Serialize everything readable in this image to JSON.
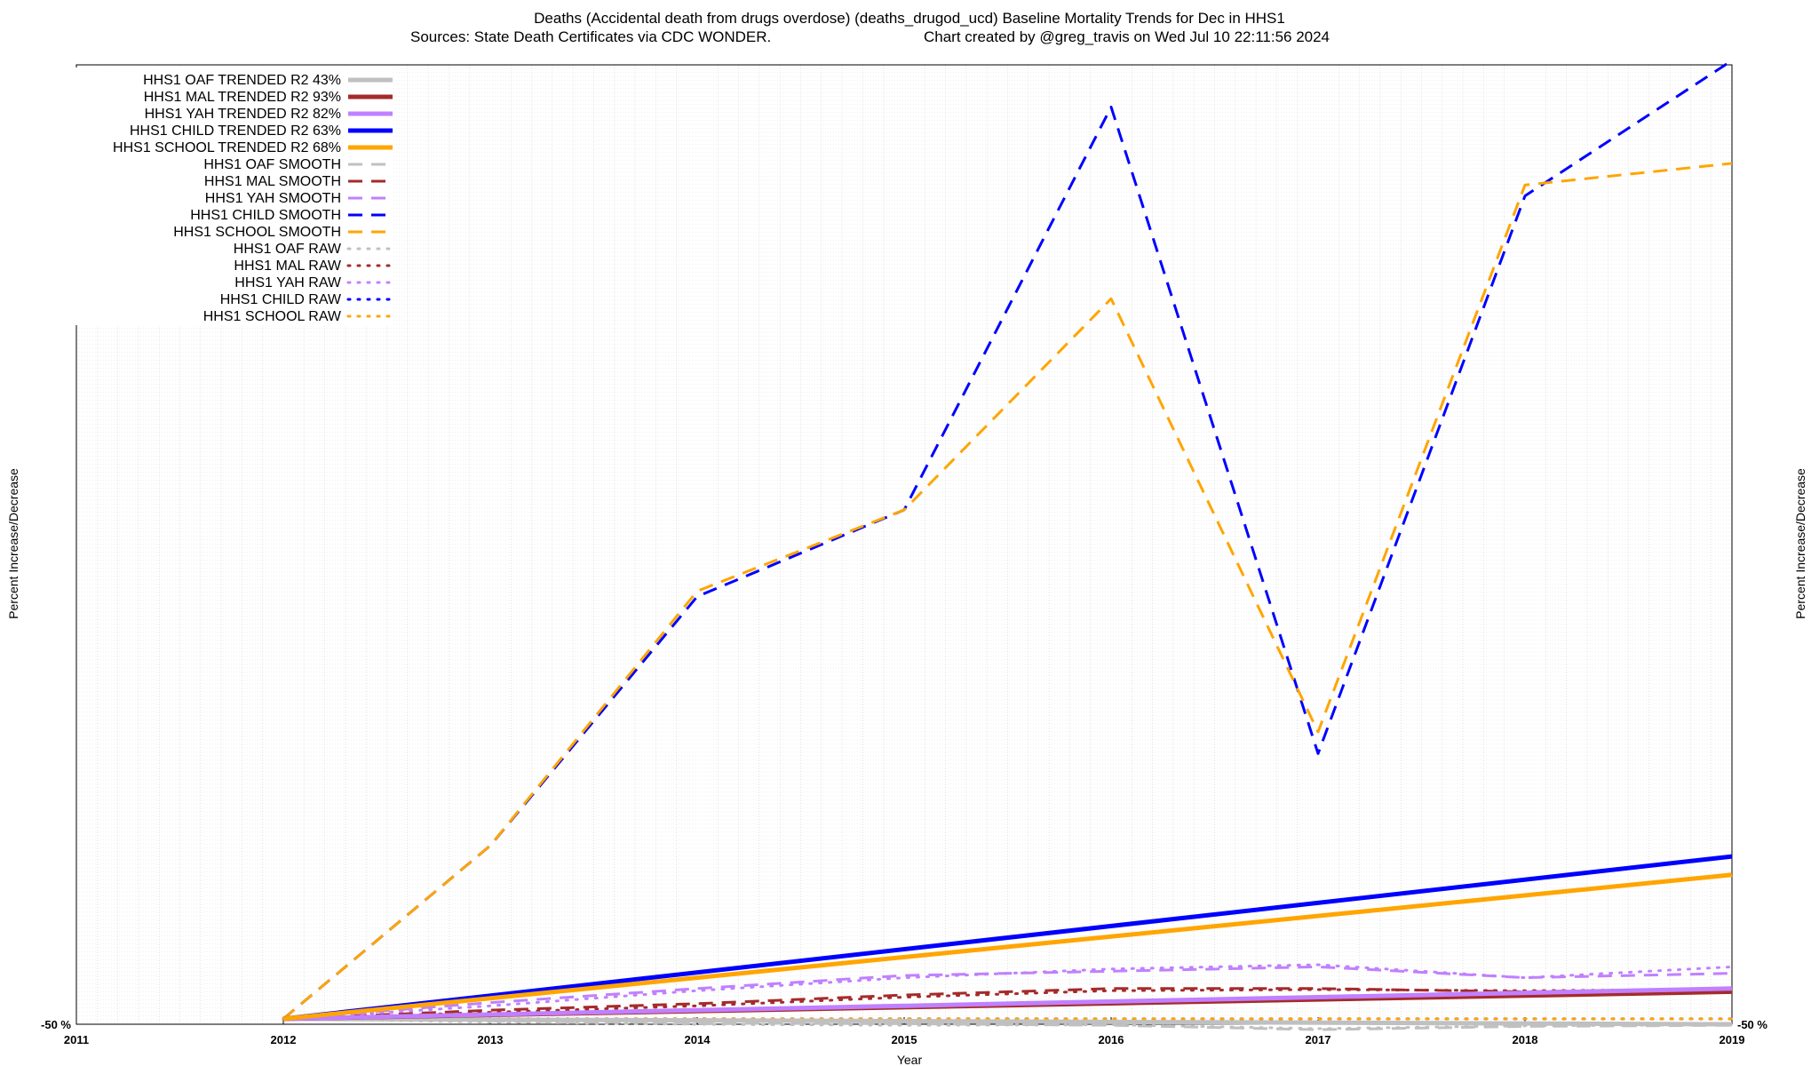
{
  "title_line1": "Deaths (Accidental death from drugs overdose) (deaths_drugod_ucd)  Baseline Mortality Trends for Dec in HHS1",
  "title_line2_left": "Sources: State Death Certificates via CDC WONDER.",
  "title_line2_right": "Chart created by @greg_travis on Wed Jul 10 22:11:56 2024",
  "chart_data": {
    "type": "line",
    "title": "Deaths (Accidental death from drugs overdose) (deaths_drugod_ucd)  Baseline Mortality Trends for Dec in HHS1",
    "subtitle": "Sources: State Death Certificates via CDC WONDER.    Chart created by @greg_travis on Wed Jul 10 22:11:56 2024",
    "xlabel": "Year",
    "ylabel": "Percent Increase/Decrease",
    "y2label": "Percent Increase/Decrease",
    "x_ticks": [
      "2011",
      "2012",
      "2013",
      "2014",
      "2015",
      "2016",
      "2017",
      "2018",
      "2019"
    ],
    "xlim": [
      2011,
      2019
    ],
    "ylim": [
      -50,
      8810
    ],
    "y_tick_labels_legible": [
      "-50 %"
    ],
    "grid": true,
    "legend_position": "top-left",
    "series": [
      {
        "name": "HHS1 OAF TRENDED R2  43%",
        "color": "#c0c0c0",
        "style": "solid",
        "width": 5,
        "x": [
          2012,
          2019
        ],
        "y": [
          0,
          -50
        ]
      },
      {
        "name": "HHS1 MAL TRENDED R2  93%",
        "color": "#a52a2a",
        "style": "solid",
        "width": 5,
        "x": [
          2012,
          2019
        ],
        "y": [
          0,
          250
        ]
      },
      {
        "name": "HHS1 YAH TRENDED R2  82%",
        "color": "#c080ff",
        "style": "solid",
        "width": 5,
        "x": [
          2012,
          2019
        ],
        "y": [
          0,
          280
        ]
      },
      {
        "name": "HHS1 CHILD TRENDED R2  63%",
        "color": "#0000ff",
        "style": "solid",
        "width": 5,
        "x": [
          2012,
          2019
        ],
        "y": [
          0,
          1500
        ]
      },
      {
        "name": "HHS1 SCHOOL TRENDED R2  68%",
        "color": "#ffa500",
        "style": "solid",
        "width": 5,
        "x": [
          2012,
          2019
        ],
        "y": [
          0,
          1330
        ]
      },
      {
        "name": "HHS1 OAF SMOOTH",
        "color": "#c0c0c0",
        "style": "dash",
        "width": 3,
        "x": [
          2012,
          2013,
          2014,
          2015,
          2016,
          2017,
          2018,
          2019
        ],
        "y": [
          0,
          -20,
          -40,
          -45,
          -60,
          -100,
          -70,
          -60
        ]
      },
      {
        "name": "HHS1 MAL SMOOTH",
        "color": "#a52a2a",
        "style": "dash",
        "width": 3,
        "x": [
          2012,
          2013,
          2014,
          2015,
          2016,
          2017,
          2018,
          2019
        ],
        "y": [
          0,
          80,
          140,
          220,
          280,
          280,
          250,
          280
        ]
      },
      {
        "name": "HHS1 YAH SMOOTH",
        "color": "#c080ff",
        "style": "dash",
        "width": 3,
        "x": [
          2012,
          2013,
          2014,
          2015,
          2016,
          2017,
          2018,
          2019
        ],
        "y": [
          0,
          150,
          280,
          400,
          440,
          480,
          380,
          420
        ]
      },
      {
        "name": "HHS1 CHILD SMOOTH",
        "color": "#0000ff",
        "style": "dash",
        "width": 3,
        "x": [
          2012,
          2013,
          2014,
          2015,
          2016,
          2017,
          2018,
          2019
        ],
        "y": [
          0,
          1600,
          3900,
          4700,
          8420,
          2450,
          7600,
          8850
        ]
      },
      {
        "name": "HHS1 SCHOOL SMOOTH",
        "color": "#ffa500",
        "style": "dash",
        "width": 3,
        "x": [
          2012,
          2013,
          2014,
          2015,
          2016,
          2017,
          2018,
          2019
        ],
        "y": [
          0,
          1600,
          3950,
          4700,
          6650,
          2650,
          7700,
          7900
        ]
      },
      {
        "name": "HHS1 OAF RAW",
        "color": "#c0c0c0",
        "style": "dot",
        "width": 3,
        "x": [
          2012,
          2013,
          2014,
          2015,
          2016,
          2017,
          2018,
          2019
        ],
        "y": [
          0,
          -30,
          -50,
          -60,
          -55,
          -90,
          -65,
          -55
        ]
      },
      {
        "name": "HHS1 MAL RAW",
        "color": "#a52a2a",
        "style": "dot",
        "width": 3,
        "x": [
          2012,
          2013,
          2014,
          2015,
          2016,
          2017,
          2018,
          2019
        ],
        "y": [
          0,
          60,
          120,
          200,
          260,
          270,
          260,
          270
        ]
      },
      {
        "name": "HHS1 YAH RAW",
        "color": "#c080ff",
        "style": "dot",
        "width": 3,
        "x": [
          2012,
          2013,
          2014,
          2015,
          2016,
          2017,
          2018,
          2019
        ],
        "y": [
          0,
          120,
          260,
          380,
          460,
          500,
          380,
          480
        ]
      },
      {
        "name": "HHS1 CHILD RAW",
        "color": "#0000ff",
        "style": "dot",
        "width": 3,
        "x": [
          2012,
          2013,
          2014,
          2015,
          2016,
          2017,
          2018,
          2019
        ],
        "y": [
          0,
          0,
          0,
          0,
          0,
          0,
          0,
          0
        ]
      },
      {
        "name": "HHS1 SCHOOL RAW",
        "color": "#ffa500",
        "style": "dot",
        "width": 3,
        "x": [
          2012,
          2013,
          2014,
          2015,
          2016,
          2017,
          2018,
          2019
        ],
        "y": [
          0,
          0,
          0,
          0,
          0,
          0,
          0,
          0
        ]
      }
    ]
  }
}
